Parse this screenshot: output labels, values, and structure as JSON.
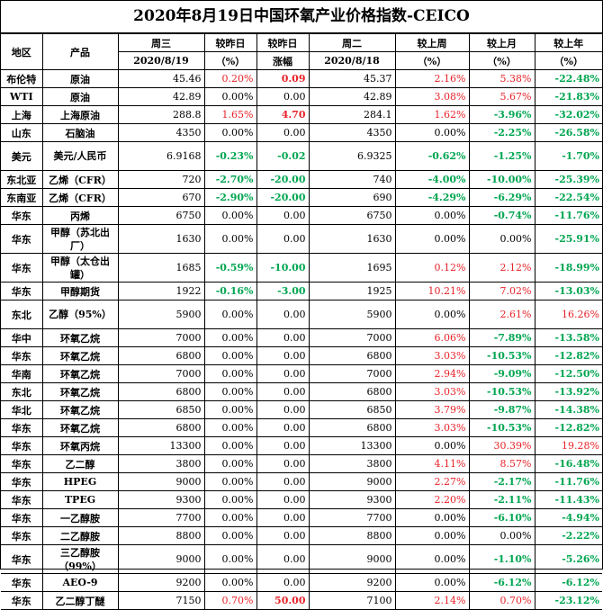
{
  "title": "2020年8月19日中国环氧产业价格指数-CEICO",
  "header": {
    "region": "地区",
    "product": "产品",
    "wed": "周三",
    "wed_date": "2020/8/19",
    "vs_yesterday": "较昨日",
    "vs_yesterday_unit": "（%）",
    "vs_yesterday2": "较昨日",
    "change": "涨幅",
    "tue": "周二",
    "tue_date": "2020/8/18",
    "vs_last_week": "较上周",
    "vs_last_week_unit": "（%）",
    "vs_last_month": "较上月",
    "vs_last_month_unit": "（%）",
    "vs_last_year": "较上年",
    "vs_last_year_unit": "（%）"
  },
  "rows": [
    {
      "region": "布伦特",
      "product": "原油",
      "wed": "45.46",
      "d_pct": "0.20%",
      "d_abs": "0.09",
      "tue": "45.37",
      "w": "2.16%",
      "m": "5.38%",
      "y": "-22.48%",
      "tall": false
    },
    {
      "region": "WTI",
      "product": "原油",
      "wed": "42.89",
      "d_pct": "0.00%",
      "d_abs": "0.00",
      "tue": "42.89",
      "w": "3.08%",
      "m": "5.67%",
      "y": "-21.83%",
      "tall": false
    },
    {
      "region": "上海",
      "product": "上海原油",
      "wed": "288.8",
      "d_pct": "1.65%",
      "d_abs": "4.70",
      "tue": "284.1",
      "w": "1.62%",
      "m": "-3.96%",
      "y": "-32.02%",
      "tall": false
    },
    {
      "region": "山东",
      "product": "石脑油",
      "wed": "4350",
      "d_pct": "0.00%",
      "d_abs": "0.00",
      "tue": "4350",
      "w": "0.00%",
      "m": "-2.25%",
      "y": "-26.58%",
      "tall": false
    },
    {
      "region": "美元",
      "product": "美元/人民币",
      "wed": "6.9168",
      "d_pct": "-0.23%",
      "d_abs": "-0.02",
      "tue": "6.9325",
      "w": "-0.62%",
      "m": "-1.25%",
      "y": "-1.70%",
      "tall": true
    },
    {
      "region": "东北亚",
      "product": "乙烯（CFR）",
      "wed": "720",
      "d_pct": "-2.70%",
      "d_abs": "-20.00",
      "tue": "740",
      "w": "-4.00%",
      "m": "-10.00%",
      "y": "-25.39%",
      "tall": false
    },
    {
      "region": "东南亚",
      "product": "乙烯（CFR）",
      "wed": "670",
      "d_pct": "-2.90%",
      "d_abs": "-20.00",
      "tue": "690",
      "w": "-4.29%",
      "m": "-6.29%",
      "y": "-22.54%",
      "tall": false
    },
    {
      "region": "华东",
      "product": "丙烯",
      "wed": "6750",
      "d_pct": "0.00%",
      "d_abs": "0.00",
      "tue": "6750",
      "w": "0.00%",
      "m": "-0.74%",
      "y": "-11.76%",
      "tall": false
    },
    {
      "region": "华东",
      "product": "甲醇（苏北出厂）",
      "wed": "1630",
      "d_pct": "0.00%",
      "d_abs": "0.00",
      "tue": "1630",
      "w": "0.00%",
      "m": "0.00%",
      "y": "-25.91%",
      "tall": true
    },
    {
      "region": "华东",
      "product": "甲醇（太仓出罐）",
      "wed": "1685",
      "d_pct": "-0.59%",
      "d_abs": "-10.00",
      "tue": "1695",
      "w": "0.12%",
      "m": "2.12%",
      "y": "-18.99%",
      "tall": true
    },
    {
      "region": "华东",
      "product": "甲醇期货",
      "wed": "1922",
      "d_pct": "-0.16%",
      "d_abs": "-3.00",
      "tue": "1925",
      "w": "10.21%",
      "m": "7.02%",
      "y": "-13.03%",
      "tall": false
    },
    {
      "region": "东北",
      "product": "乙醇（95%）",
      "wed": "5900",
      "d_pct": "0.00%",
      "d_abs": "0.00",
      "tue": "5900",
      "w": "0.00%",
      "m": "2.61%",
      "y": "16.26%",
      "tall": true
    },
    {
      "region": "华中",
      "product": "环氧乙烷",
      "wed": "7000",
      "d_pct": "0.00%",
      "d_abs": "0.00",
      "tue": "7000",
      "w": "6.06%",
      "m": "-7.89%",
      "y": "-13.58%",
      "tall": false
    },
    {
      "region": "华东",
      "product": "环氧乙烷",
      "wed": "6800",
      "d_pct": "0.00%",
      "d_abs": "0.00",
      "tue": "6800",
      "w": "3.03%",
      "m": "-10.53%",
      "y": "-12.82%",
      "tall": false
    },
    {
      "region": "华南",
      "product": "环氧乙烷",
      "wed": "7000",
      "d_pct": "0.00%",
      "d_abs": "0.00",
      "tue": "7000",
      "w": "2.94%",
      "m": "-9.09%",
      "y": "-12.50%",
      "tall": false
    },
    {
      "region": "东北",
      "product": "环氧乙烷",
      "wed": "6800",
      "d_pct": "0.00%",
      "d_abs": "0.00",
      "tue": "6800",
      "w": "3.03%",
      "m": "-10.53%",
      "y": "-13.92%",
      "tall": false
    },
    {
      "region": "华北",
      "product": "环氧乙烷",
      "wed": "6850",
      "d_pct": "0.00%",
      "d_abs": "0.00",
      "tue": "6850",
      "w": "3.79%",
      "m": "-9.87%",
      "y": "-14.38%",
      "tall": false
    },
    {
      "region": "华东",
      "product": "环氧乙烷",
      "wed": "6800",
      "d_pct": "0.00%",
      "d_abs": "0.00",
      "tue": "6800",
      "w": "3.03%",
      "m": "-10.53%",
      "y": "-12.82%",
      "tall": false
    },
    {
      "region": "华东",
      "product": "环氧丙烷",
      "wed": "13300",
      "d_pct": "0.00%",
      "d_abs": "0.00",
      "tue": "13300",
      "w": "0.00%",
      "m": "30.39%",
      "y": "19.28%",
      "tall": false
    },
    {
      "region": "华东",
      "product": "乙二醇",
      "wed": "3800",
      "d_pct": "0.00%",
      "d_abs": "0.00",
      "tue": "3800",
      "w": "4.11%",
      "m": "8.57%",
      "y": "-16.48%",
      "tall": false
    },
    {
      "region": "华东",
      "product": "HPEG",
      "wed": "9000",
      "d_pct": "0.00%",
      "d_abs": "0.00",
      "tue": "9000",
      "w": "2.27%",
      "m": "-2.17%",
      "y": "-11.76%",
      "tall": false
    },
    {
      "region": "华东",
      "product": "TPEG",
      "wed": "9300",
      "d_pct": "0.00%",
      "d_abs": "0.00",
      "tue": "9300",
      "w": "2.20%",
      "m": "-2.11%",
      "y": "-11.43%",
      "tall": false
    },
    {
      "region": "华东",
      "product": "一乙醇胺",
      "wed": "7700",
      "d_pct": "0.00%",
      "d_abs": "0.00",
      "tue": "7700",
      "w": "0.00%",
      "m": "-6.10%",
      "y": "-4.94%",
      "tall": false
    },
    {
      "region": "华东",
      "product": "二乙醇胺",
      "wed": "8800",
      "d_pct": "0.00%",
      "d_abs": "0.00",
      "tue": "8800",
      "w": "0.00%",
      "m": "0.00%",
      "y": "-2.22%",
      "tall": false
    },
    {
      "region": "华东",
      "product": "三乙醇胺（99%）",
      "wed": "9000",
      "d_pct": "0.00%",
      "d_abs": "0.00",
      "tue": "9000",
      "w": "0.00%",
      "m": "-1.10%",
      "y": "-5.26%",
      "tall": true
    },
    {
      "region": "华东",
      "product": "AEO-9",
      "wed": "9200",
      "d_pct": "0.00%",
      "d_abs": "0.00",
      "tue": "9200",
      "w": "0.00%",
      "m": "-6.12%",
      "y": "-6.12%",
      "tall": false
    },
    {
      "region": "华东",
      "product": "乙二醇丁醚",
      "wed": "7150",
      "d_pct": "0.70%",
      "d_abs": "50.00",
      "tue": "7100",
      "w": "2.14%",
      "m": "0.70%",
      "y": "-23.12%",
      "tall": false
    }
  ],
  "colors": {
    "up": "#e8232a",
    "down": "#00a651",
    "text": "#000000"
  }
}
